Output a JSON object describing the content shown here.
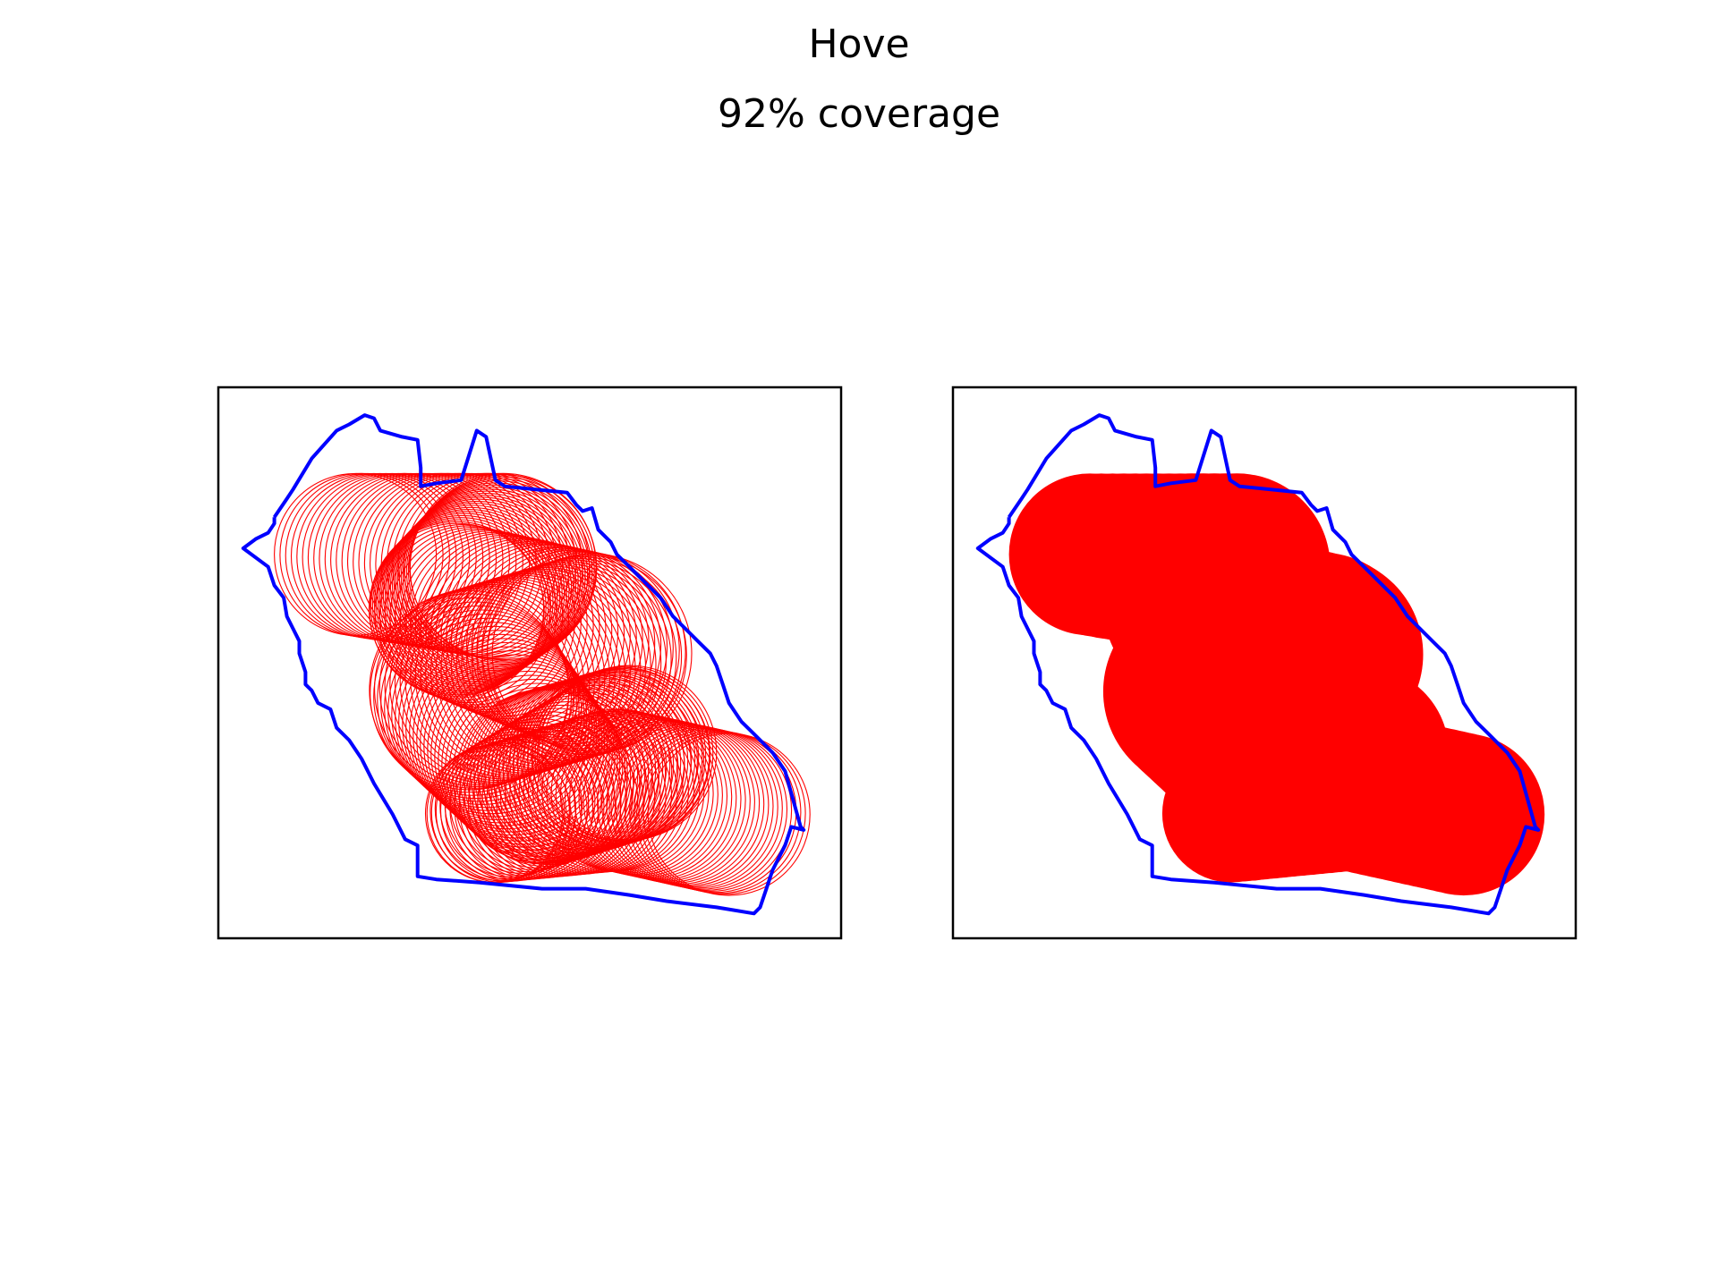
{
  "title": "Hove",
  "subtitle": "92% coverage",
  "chart_data": [
    {
      "type": "scatter",
      "panel": "outline",
      "title": "",
      "xlabel": "",
      "ylabel": "",
      "xlim": [
        0,
        100
      ],
      "ylim": [
        0,
        89
      ],
      "grid": false,
      "ticks": false,
      "colors": {
        "boundary": "#0000ff",
        "coverage": "#ff0000",
        "frame": "#000000"
      },
      "boundary": [
        [
          9,
          68
        ],
        [
          11,
          71
        ],
        [
          12,
          72.5
        ],
        [
          15,
          77.5
        ],
        [
          19,
          82
        ],
        [
          21,
          83
        ],
        [
          23.5,
          84.5
        ],
        [
          25,
          84
        ],
        [
          26,
          82
        ],
        [
          29.5,
          81
        ],
        [
          32,
          80.5
        ],
        [
          32.5,
          76
        ],
        [
          32.5,
          73
        ],
        [
          35,
          73.5
        ],
        [
          39,
          74
        ],
        [
          41.5,
          82
        ],
        [
          43,
          81
        ],
        [
          44.5,
          74
        ],
        [
          46,
          73
        ],
        [
          56,
          72
        ],
        [
          57.5,
          70
        ],
        [
          58.5,
          69
        ],
        [
          60,
          69.5
        ],
        [
          61,
          66
        ],
        [
          62,
          65
        ],
        [
          63,
          64
        ],
        [
          64,
          62
        ],
        [
          66,
          60
        ],
        [
          71,
          55
        ],
        [
          73,
          52
        ],
        [
          75,
          50
        ],
        [
          77,
          48
        ],
        [
          79,
          46
        ],
        [
          80,
          44
        ],
        [
          81,
          41
        ],
        [
          82,
          38
        ],
        [
          84,
          35
        ],
        [
          86,
          33
        ],
        [
          89,
          30
        ],
        [
          91,
          27
        ],
        [
          93.5,
          18
        ],
        [
          94,
          17.5
        ],
        [
          92,
          18
        ],
        [
          91,
          15
        ],
        [
          90,
          13
        ],
        [
          89,
          11
        ],
        [
          88,
          8
        ],
        [
          87,
          5
        ],
        [
          86,
          4
        ],
        [
          80,
          5
        ],
        [
          72,
          6
        ],
        [
          66,
          7
        ],
        [
          59,
          8
        ],
        [
          52,
          8
        ],
        [
          42,
          9
        ],
        [
          35,
          9.5
        ],
        [
          32,
          10
        ],
        [
          32,
          13
        ],
        [
          32,
          15
        ],
        [
          30,
          16
        ],
        [
          28,
          20
        ],
        [
          25,
          25
        ],
        [
          23,
          29
        ],
        [
          21,
          32
        ],
        [
          19,
          34
        ],
        [
          18,
          37
        ],
        [
          16,
          38
        ],
        [
          15,
          40
        ],
        [
          14,
          41
        ],
        [
          14,
          43
        ],
        [
          13,
          46
        ],
        [
          13,
          48
        ],
        [
          12,
          50
        ],
        [
          11,
          52
        ],
        [
          10.5,
          55
        ],
        [
          9,
          57
        ],
        [
          8,
          60
        ],
        [
          4,
          63
        ],
        [
          6,
          64.5
        ],
        [
          8,
          65.5
        ],
        [
          9,
          67
        ],
        [
          9,
          68
        ]
      ],
      "circles_left": {
        "start": [
          22,
          62
        ],
        "end": [
          82,
          20
        ],
        "radii": [
          13,
          15,
          13,
          13,
          13
        ],
        "outline_only": true
      },
      "circles_right": {
        "start": [
          22,
          62
        ],
        "end": [
          82,
          20
        ],
        "radius": 14,
        "filled": true
      },
      "bubbles": [
        [
          22,
          62,
          13
        ],
        [
          46,
          60,
          15
        ],
        [
          38,
          53,
          14
        ],
        [
          60,
          46,
          16
        ],
        [
          40,
          40,
          16
        ],
        [
          52,
          26,
          14
        ],
        [
          66,
          30,
          14
        ],
        [
          44,
          20,
          11
        ],
        [
          64,
          24,
          13
        ],
        [
          82,
          20,
          13
        ]
      ]
    }
  ]
}
